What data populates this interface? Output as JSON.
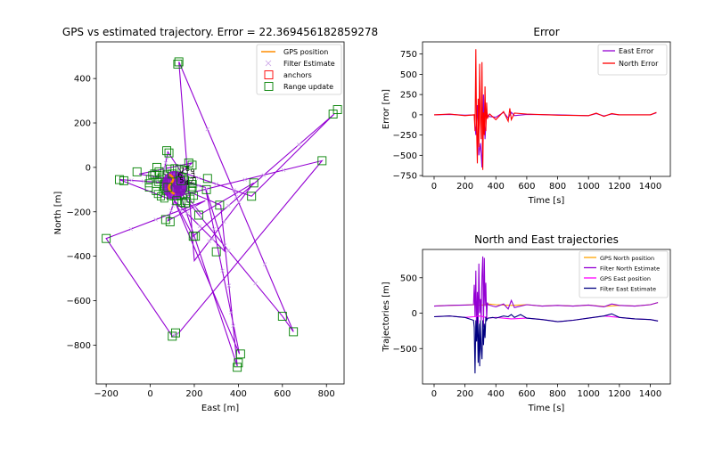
{
  "chart_data": [
    {
      "type": "scatter",
      "title": "GPS vs estimated trajectory. Error = 22.369456182859278",
      "xlabel": "East [m]",
      "ylabel": "North [m]",
      "xlim": [
        -245,
        880
      ],
      "ylim": [
        -975,
        565
      ],
      "xticks": [
        -200,
        0,
        200,
        400,
        600,
        800
      ],
      "xtick_labels": [
        "−200",
        "0",
        "200",
        "400",
        "600",
        "800"
      ],
      "yticks": [
        -800,
        -600,
        -400,
        -200,
        0,
        200,
        400
      ],
      "ytick_labels": [
        "−800",
        "−600",
        "−400",
        "−200",
        "0",
        "200",
        "400"
      ],
      "legend_position": "upper right",
      "legend": [
        {
          "label": "GPS position",
          "kind": "line",
          "color": "#ff8c00"
        },
        {
          "label": "Filter Estimate",
          "kind": "x",
          "color": "#c8a0e6"
        },
        {
          "label": "anchors",
          "kind": "square",
          "color": "#ff0000"
        },
        {
          "label": "Range update",
          "kind": "square",
          "color": "#008000"
        }
      ],
      "colors": {
        "path": "#9400d3",
        "estimate": "#c8a0e6",
        "gps": "#ff8c00",
        "range": "#008000",
        "anchor": "#ff0000"
      },
      "trajectory": [
        [
          110,
          -80
        ],
        [
          600,
          -670
        ],
        [
          650,
          -740
        ],
        [
          130,
          475
        ],
        [
          200,
          -420
        ],
        [
          470,
          -70
        ],
        [
          230,
          -210
        ],
        [
          120,
          -70
        ],
        [
          395,
          -895
        ],
        [
          320,
          -170
        ],
        [
          80,
          -70
        ],
        [
          -140,
          -55
        ],
        [
          80,
          -140
        ],
        [
          780,
          30
        ],
        [
          130,
          -745
        ],
        [
          100,
          -760
        ],
        [
          -200,
          -320
        ],
        [
          250,
          -150
        ],
        [
          80,
          -240
        ],
        [
          110,
          -150
        ],
        [
          195,
          -310
        ],
        [
          835,
          240
        ],
        [
          460,
          -130
        ],
        [
          140,
          -20
        ],
        [
          80,
          70
        ],
        [
          60,
          -30
        ],
        [
          250,
          -90
        ],
        [
          405,
          -840
        ],
        [
          110,
          -150
        ],
        [
          340,
          -380
        ],
        [
          250,
          -90
        ],
        [
          130,
          -60
        ],
        [
          -50,
          -30
        ],
        [
          190,
          20
        ],
        [
          110,
          -50
        ]
      ],
      "range_updates": [
        [
          850,
          260
        ],
        [
          830,
          240
        ],
        [
          780,
          30
        ],
        [
          470,
          -70
        ],
        [
          460,
          -130
        ],
        [
          650,
          -740
        ],
        [
          600,
          -670
        ],
        [
          410,
          -840
        ],
        [
          395,
          -900
        ],
        [
          400,
          -880
        ],
        [
          100,
          -760
        ],
        [
          115,
          -745
        ],
        [
          -200,
          -320
        ],
        [
          195,
          -310
        ],
        [
          205,
          -310
        ],
        [
          300,
          -380
        ],
        [
          70,
          -235
        ],
        [
          90,
          -245
        ],
        [
          220,
          -215
        ],
        [
          315,
          -170
        ],
        [
          255,
          -100
        ],
        [
          260,
          -50
        ],
        [
          -140,
          -55
        ],
        [
          -120,
          -60
        ],
        [
          -60,
          -20
        ],
        [
          130,
          475
        ],
        [
          125,
          465
        ],
        [
          75,
          75
        ],
        [
          85,
          65
        ],
        [
          175,
          20
        ],
        [
          190,
          10
        ],
        [
          30,
          0
        ],
        [
          40,
          -20
        ],
        [
          20,
          -30
        ],
        [
          120,
          -150
        ],
        [
          160,
          -160
        ],
        [
          100,
          -30
        ],
        [
          80,
          -90
        ],
        [
          140,
          -60
        ]
      ],
      "anchors": [],
      "gps_cluster_center": [
        110,
        -80
      ],
      "annotations": [
        "1",
        "2",
        "4",
        "5",
        "6",
        "7",
        "8",
        "9"
      ]
    },
    {
      "type": "line",
      "title": "Error",
      "xlabel": "Time [s]",
      "ylabel": "Error [m]",
      "xlim": [
        -75,
        1530
      ],
      "ylim": [
        -760,
        900
      ],
      "xticks": [
        0,
        200,
        400,
        600,
        800,
        1000,
        1200,
        1400
      ],
      "yticks": [
        -750,
        -500,
        -250,
        0,
        250,
        500,
        750
      ],
      "ytick_labels": [
        "−750",
        "−500",
        "−250",
        "0",
        "250",
        "500",
        "750"
      ],
      "legend_position": "upper right",
      "series": [
        {
          "name": "East Error",
          "color": "#9400d3",
          "x": [
            0,
            100,
            200,
            260,
            270,
            280,
            290,
            300,
            310,
            320,
            330,
            340,
            350,
            400,
            450,
            480,
            500,
            520,
            600,
            800,
            1000,
            1050,
            1100,
            1150,
            1200,
            1400,
            1440
          ],
          "y": [
            0,
            5,
            -5,
            0,
            -250,
            120,
            -500,
            -350,
            -650,
            250,
            -300,
            40,
            -20,
            -30,
            30,
            -40,
            30,
            -10,
            5,
            0,
            -10,
            15,
            -15,
            10,
            0,
            0,
            25
          ]
        },
        {
          "name": "North Error",
          "color": "#ff0000",
          "x": [
            0,
            100,
            200,
            260,
            265,
            270,
            275,
            280,
            285,
            290,
            295,
            300,
            305,
            310,
            315,
            320,
            325,
            330,
            335,
            340,
            345,
            350,
            360,
            400,
            450,
            480,
            490,
            500,
            520,
            600,
            800,
            1000,
            1050,
            1100,
            1150,
            1200,
            1400,
            1440
          ],
          "y": [
            0,
            10,
            -10,
            0,
            -200,
            810,
            -150,
            -600,
            200,
            -400,
            630,
            -100,
            -300,
            650,
            -680,
            30,
            -250,
            350,
            -200,
            150,
            -50,
            -20,
            10,
            -60,
            40,
            -80,
            80,
            -60,
            20,
            10,
            -5,
            -10,
            20,
            -20,
            15,
            0,
            0,
            30
          ]
        }
      ]
    },
    {
      "type": "line",
      "title": "North and East trajectories",
      "xlabel": "Time [s]",
      "ylabel": "Trajectories [m]",
      "xlim": [
        -75,
        1530
      ],
      "ylim": [
        -1000,
        900
      ],
      "xticks": [
        0,
        200,
        400,
        600,
        800,
        1000,
        1200,
        1400
      ],
      "yticks": [
        -500,
        0,
        500
      ],
      "ytick_labels": [
        "−500",
        "0",
        "500"
      ],
      "legend_position": "upper right",
      "series": [
        {
          "name": "GPS North position",
          "color": "#ffa500",
          "x": [
            0,
            100,
            200,
            260,
            300,
            350,
            400,
            500,
            600,
            700,
            800,
            900,
            1000,
            1100,
            1200,
            1300,
            1400,
            1450
          ],
          "y": [
            100,
            110,
            115,
            120,
            110,
            130,
            120,
            110,
            120,
            100,
            110,
            100,
            115,
            95,
            110,
            100,
            120,
            150
          ]
        },
        {
          "name": "Filter North Estimate",
          "color": "#9400d3",
          "x": [
            0,
            100,
            200,
            255,
            260,
            265,
            270,
            275,
            280,
            285,
            290,
            295,
            300,
            305,
            310,
            315,
            320,
            325,
            330,
            335,
            340,
            345,
            350,
            380,
            400,
            450,
            480,
            500,
            520,
            600,
            700,
            800,
            900,
            1000,
            1100,
            1150,
            1200,
            1300,
            1400,
            1450
          ],
          "y": [
            100,
            110,
            115,
            120,
            400,
            -50,
            600,
            -300,
            300,
            -150,
            700,
            0,
            200,
            -100,
            520,
            800,
            -200,
            780,
            100,
            430,
            -100,
            150,
            120,
            100,
            90,
            130,
            60,
            180,
            80,
            120,
            100,
            110,
            100,
            115,
            90,
            130,
            110,
            100,
            120,
            150
          ]
        },
        {
          "name": "GPS East position",
          "color": "#ff00ff",
          "x": [
            0,
            100,
            200,
            260,
            300,
            350,
            400,
            500,
            600,
            700,
            800,
            900,
            1000,
            1100,
            1200,
            1300,
            1400,
            1450
          ],
          "y": [
            -50,
            -40,
            -60,
            -50,
            -40,
            -70,
            -60,
            -80,
            -70,
            -90,
            -120,
            -100,
            -70,
            -40,
            -60,
            -80,
            -90,
            -110
          ]
        },
        {
          "name": "Filter East Estimate",
          "color": "#000080",
          "x": [
            0,
            100,
            200,
            255,
            260,
            265,
            270,
            275,
            280,
            285,
            290,
            295,
            300,
            305,
            310,
            315,
            320,
            325,
            330,
            335,
            340,
            345,
            350,
            380,
            400,
            450,
            480,
            500,
            520,
            560,
            600,
            700,
            800,
            900,
            1000,
            1100,
            1150,
            1200,
            1300,
            1400,
            1450
          ],
          "y": [
            -50,
            -40,
            -60,
            -100,
            -200,
            -850,
            -100,
            -400,
            -50,
            -700,
            -150,
            -750,
            -100,
            -500,
            -650,
            -100,
            -450,
            -150,
            -350,
            -50,
            -100,
            -80,
            -70,
            -60,
            -70,
            -40,
            -50,
            -20,
            -60,
            -20,
            -70,
            -90,
            -120,
            -100,
            -70,
            -40,
            -10,
            -60,
            -80,
            -90,
            -110
          ]
        }
      ]
    }
  ]
}
